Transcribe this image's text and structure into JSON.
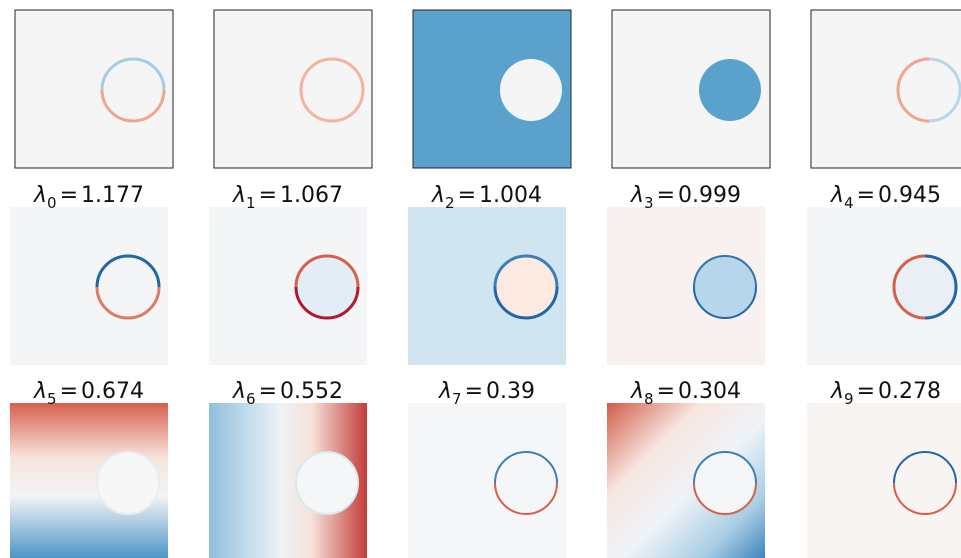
{
  "figure": {
    "relation": "=",
    "titles": [
      {
        "symbol": "λ",
        "index": "0",
        "value": 1.177
      },
      {
        "symbol": "λ",
        "index": "1",
        "value": 1.067
      },
      {
        "symbol": "λ",
        "index": "2",
        "value": 1.004
      },
      {
        "symbol": "λ",
        "index": "3",
        "value": 0.999
      },
      {
        "symbol": "λ",
        "index": "4",
        "value": 0.945
      },
      {
        "symbol": "λ",
        "index": "5",
        "value": 0.674
      },
      {
        "symbol": "λ",
        "index": "6",
        "value": 0.552
      },
      {
        "symbol": "λ",
        "index": "7",
        "value": 0.39
      },
      {
        "symbol": "λ",
        "index": "8",
        "value": 0.304
      },
      {
        "symbol": "λ",
        "index": "9",
        "value": 0.278
      }
    ]
  }
}
